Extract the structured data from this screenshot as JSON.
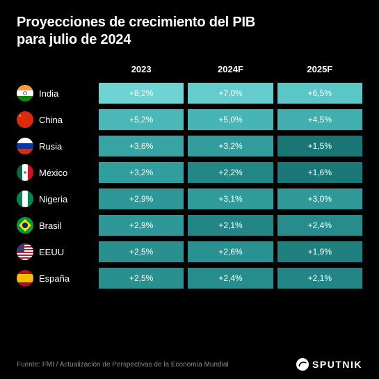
{
  "title_line1": "Proyecciones de crecimiento del PIB",
  "title_line2": "para julio de 2024",
  "columns": [
    "2023",
    "2024F",
    "2025F"
  ],
  "color_scale": {
    "8.2": "#6fd3d3",
    "7.0": "#64cccc",
    "6.5": "#5bc6c6",
    "5.2": "#4bb8b8",
    "5.0": "#48b5b5",
    "4.5": "#42afaf",
    "3.6": "#37a3a3",
    "3.2": "#329d9d",
    "3.1": "#309b9b",
    "3.0": "#2f9999",
    "2.9": "#2e9797",
    "2.6": "#2a9191",
    "2.5": "#298f8f",
    "2.4": "#278c8c",
    "2.2": "#248787",
    "2.1": "#238585",
    "1.9": "#208080",
    "1.6": "#1c7878",
    "1.5": "#1a7575"
  },
  "rows": [
    {
      "country": "India",
      "flag_svg": "<svg viewBox='0 0 24 24'><rect width='24' height='8' fill='#ff9933'/><rect y='8' width='24' height='8' fill='#ffffff'/><rect y='16' width='24' height='8' fill='#138808'/><circle cx='12' cy='12' r='2.5' fill='none' stroke='#000080' stroke-width='0.6'/></svg>",
      "values": [
        "+8,2%",
        "+7,0%",
        "+6,5%"
      ],
      "keys": [
        "8.2",
        "7.0",
        "6.5"
      ]
    },
    {
      "country": "China",
      "flag_svg": "<svg viewBox='0 0 24 24'><rect width='24' height='24' fill='#de2910'/><polygon points='5,5 6,8 3,6 7,6 4,8' fill='#ffde00'/></svg>",
      "values": [
        "+5,2%",
        "+5,0%",
        "+4,5%"
      ],
      "keys": [
        "5.2",
        "5.0",
        "4.5"
      ]
    },
    {
      "country": "Rusia",
      "flag_svg": "<svg viewBox='0 0 24 24'><rect width='24' height='8' fill='#ffffff'/><rect y='8' width='24' height='8' fill='#0039a6'/><rect y='16' width='24' height='8' fill='#d52b1e'/></svg>",
      "values": [
        "+3,6%",
        "+3,2%",
        "+1,5%"
      ],
      "keys": [
        "3.6",
        "3.2",
        "1.5"
      ]
    },
    {
      "country": "México",
      "flag_svg": "<svg viewBox='0 0 24 24'><rect width='8' height='24' fill='#006847'/><rect x='8' width='8' height='24' fill='#ffffff'/><rect x='16' width='8' height='24' fill='#ce1126'/><circle cx='12' cy='12' r='2' fill='#a67c52'/></svg>",
      "values": [
        "+3,2%",
        "+2,2%",
        "+1,6%"
      ],
      "keys": [
        "3.2",
        "2.2",
        "1.6"
      ]
    },
    {
      "country": "Nigeria",
      "flag_svg": "<svg viewBox='0 0 24 24'><rect width='8' height='24' fill='#008751'/><rect x='8' width='8' height='24' fill='#ffffff'/><rect x='16' width='8' height='24' fill='#008751'/></svg>",
      "values": [
        "+2,9%",
        "+3,1%",
        "+3,0%"
      ],
      "keys": [
        "2.9",
        "3.1",
        "3.0"
      ]
    },
    {
      "country": "Brasil",
      "flag_svg": "<svg viewBox='0 0 24 24'><rect width='24' height='24' fill='#009c3b'/><polygon points='12,3 21,12 12,21 3,12' fill='#ffdf00'/><circle cx='12' cy='12' r='4' fill='#002776'/></svg>",
      "values": [
        "+2,9%",
        "+2,1%",
        "+2,4%"
      ],
      "keys": [
        "2.9",
        "2.1",
        "2.4"
      ]
    },
    {
      "country": "EEUU",
      "flag_svg": "<svg viewBox='0 0 24 24'><rect width='24' height='24' fill='#b22234'/><rect y='2' width='24' height='2' fill='#fff'/><rect y='6' width='24' height='2' fill='#fff'/><rect y='10' width='24' height='2' fill='#fff'/><rect y='14' width='24' height='2' fill='#fff'/><rect y='18' width='24' height='2' fill='#fff'/><rect y='22' width='24' height='2' fill='#fff'/><rect width='11' height='12' fill='#3c3b6e'/></svg>",
      "values": [
        "+2,5%",
        "+2,6%",
        "+1,9%"
      ],
      "keys": [
        "2.5",
        "2.6",
        "1.9"
      ]
    },
    {
      "country": "España",
      "flag_svg": "<svg viewBox='0 0 24 24'><rect width='24' height='6' fill='#aa151b'/><rect y='6' width='24' height='12' fill='#f1bf00'/><rect y='18' width='24' height='6' fill='#aa151b'/></svg>",
      "values": [
        "+2,5%",
        "+2,4%",
        "+2,1%"
      ],
      "keys": [
        "2.5",
        "2.4",
        "2.1"
      ]
    }
  ],
  "source": "Fuente: FMI / Actualización de Perspectivas de la Economía Mundial",
  "brand": "SPUTNIK"
}
